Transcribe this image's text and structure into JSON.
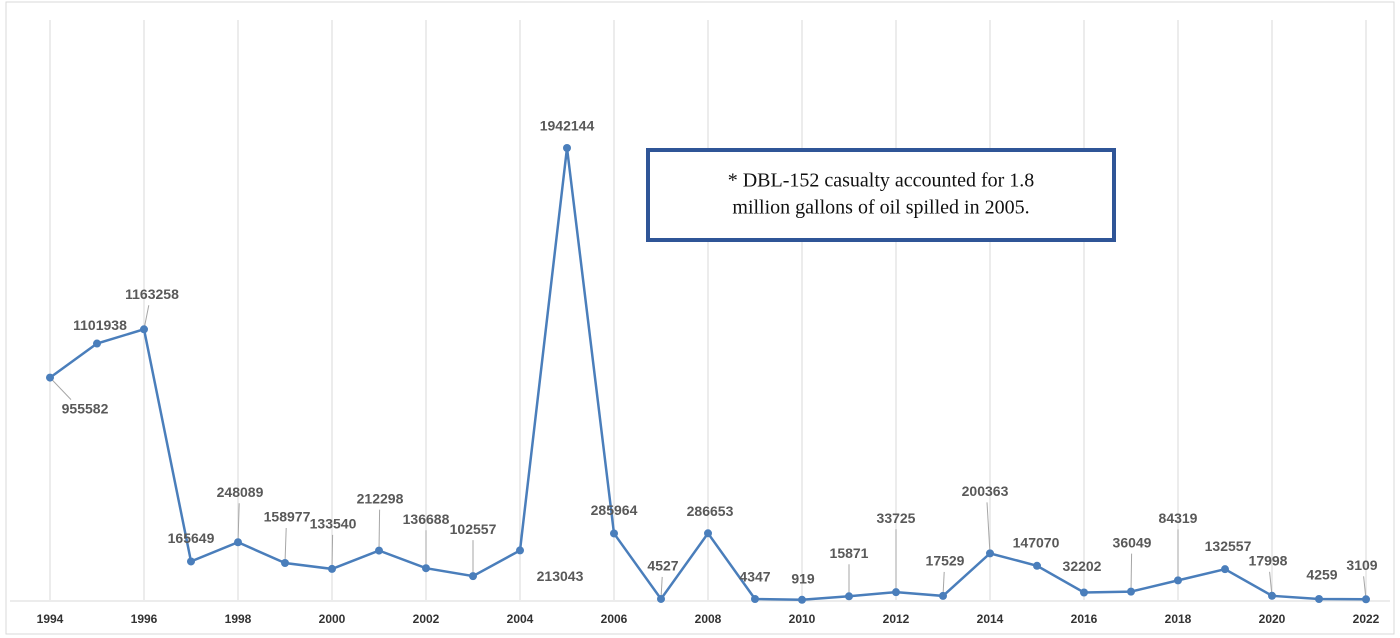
{
  "chart_data": {
    "type": "line",
    "x": [
      1994,
      1995,
      1996,
      1997,
      1998,
      1999,
      2000,
      2001,
      2002,
      2003,
      2004,
      2005,
      2006,
      2007,
      2008,
      2009,
      2010,
      2011,
      2012,
      2013,
      2014,
      2015,
      2016,
      2017,
      2018,
      2019,
      2020,
      2021,
      2022
    ],
    "xlim": [
      1994,
      2022
    ],
    "xticks": [
      1994,
      1996,
      1998,
      2000,
      2002,
      2004,
      2006,
      2008,
      2010,
      2012,
      2014,
      2016,
      2018,
      2020,
      2022
    ],
    "values": [
      955582,
      1101938,
      1163258,
      165649,
      248089,
      158977,
      133540,
      212298,
      136688,
      102557,
      213043,
      1942144,
      285964,
      4527,
      286653,
      4347,
      919,
      15871,
      33725,
      17529,
      200363,
      147070,
      32202,
      36049,
      84319,
      132557,
      17998,
      4259,
      3109
    ],
    "color": "#4a7ebb",
    "grid": true,
    "annotation": [
      "* DBL-152 casualty accounted for 1.8",
      "million gallons of oil spilled in 2005."
    ]
  }
}
